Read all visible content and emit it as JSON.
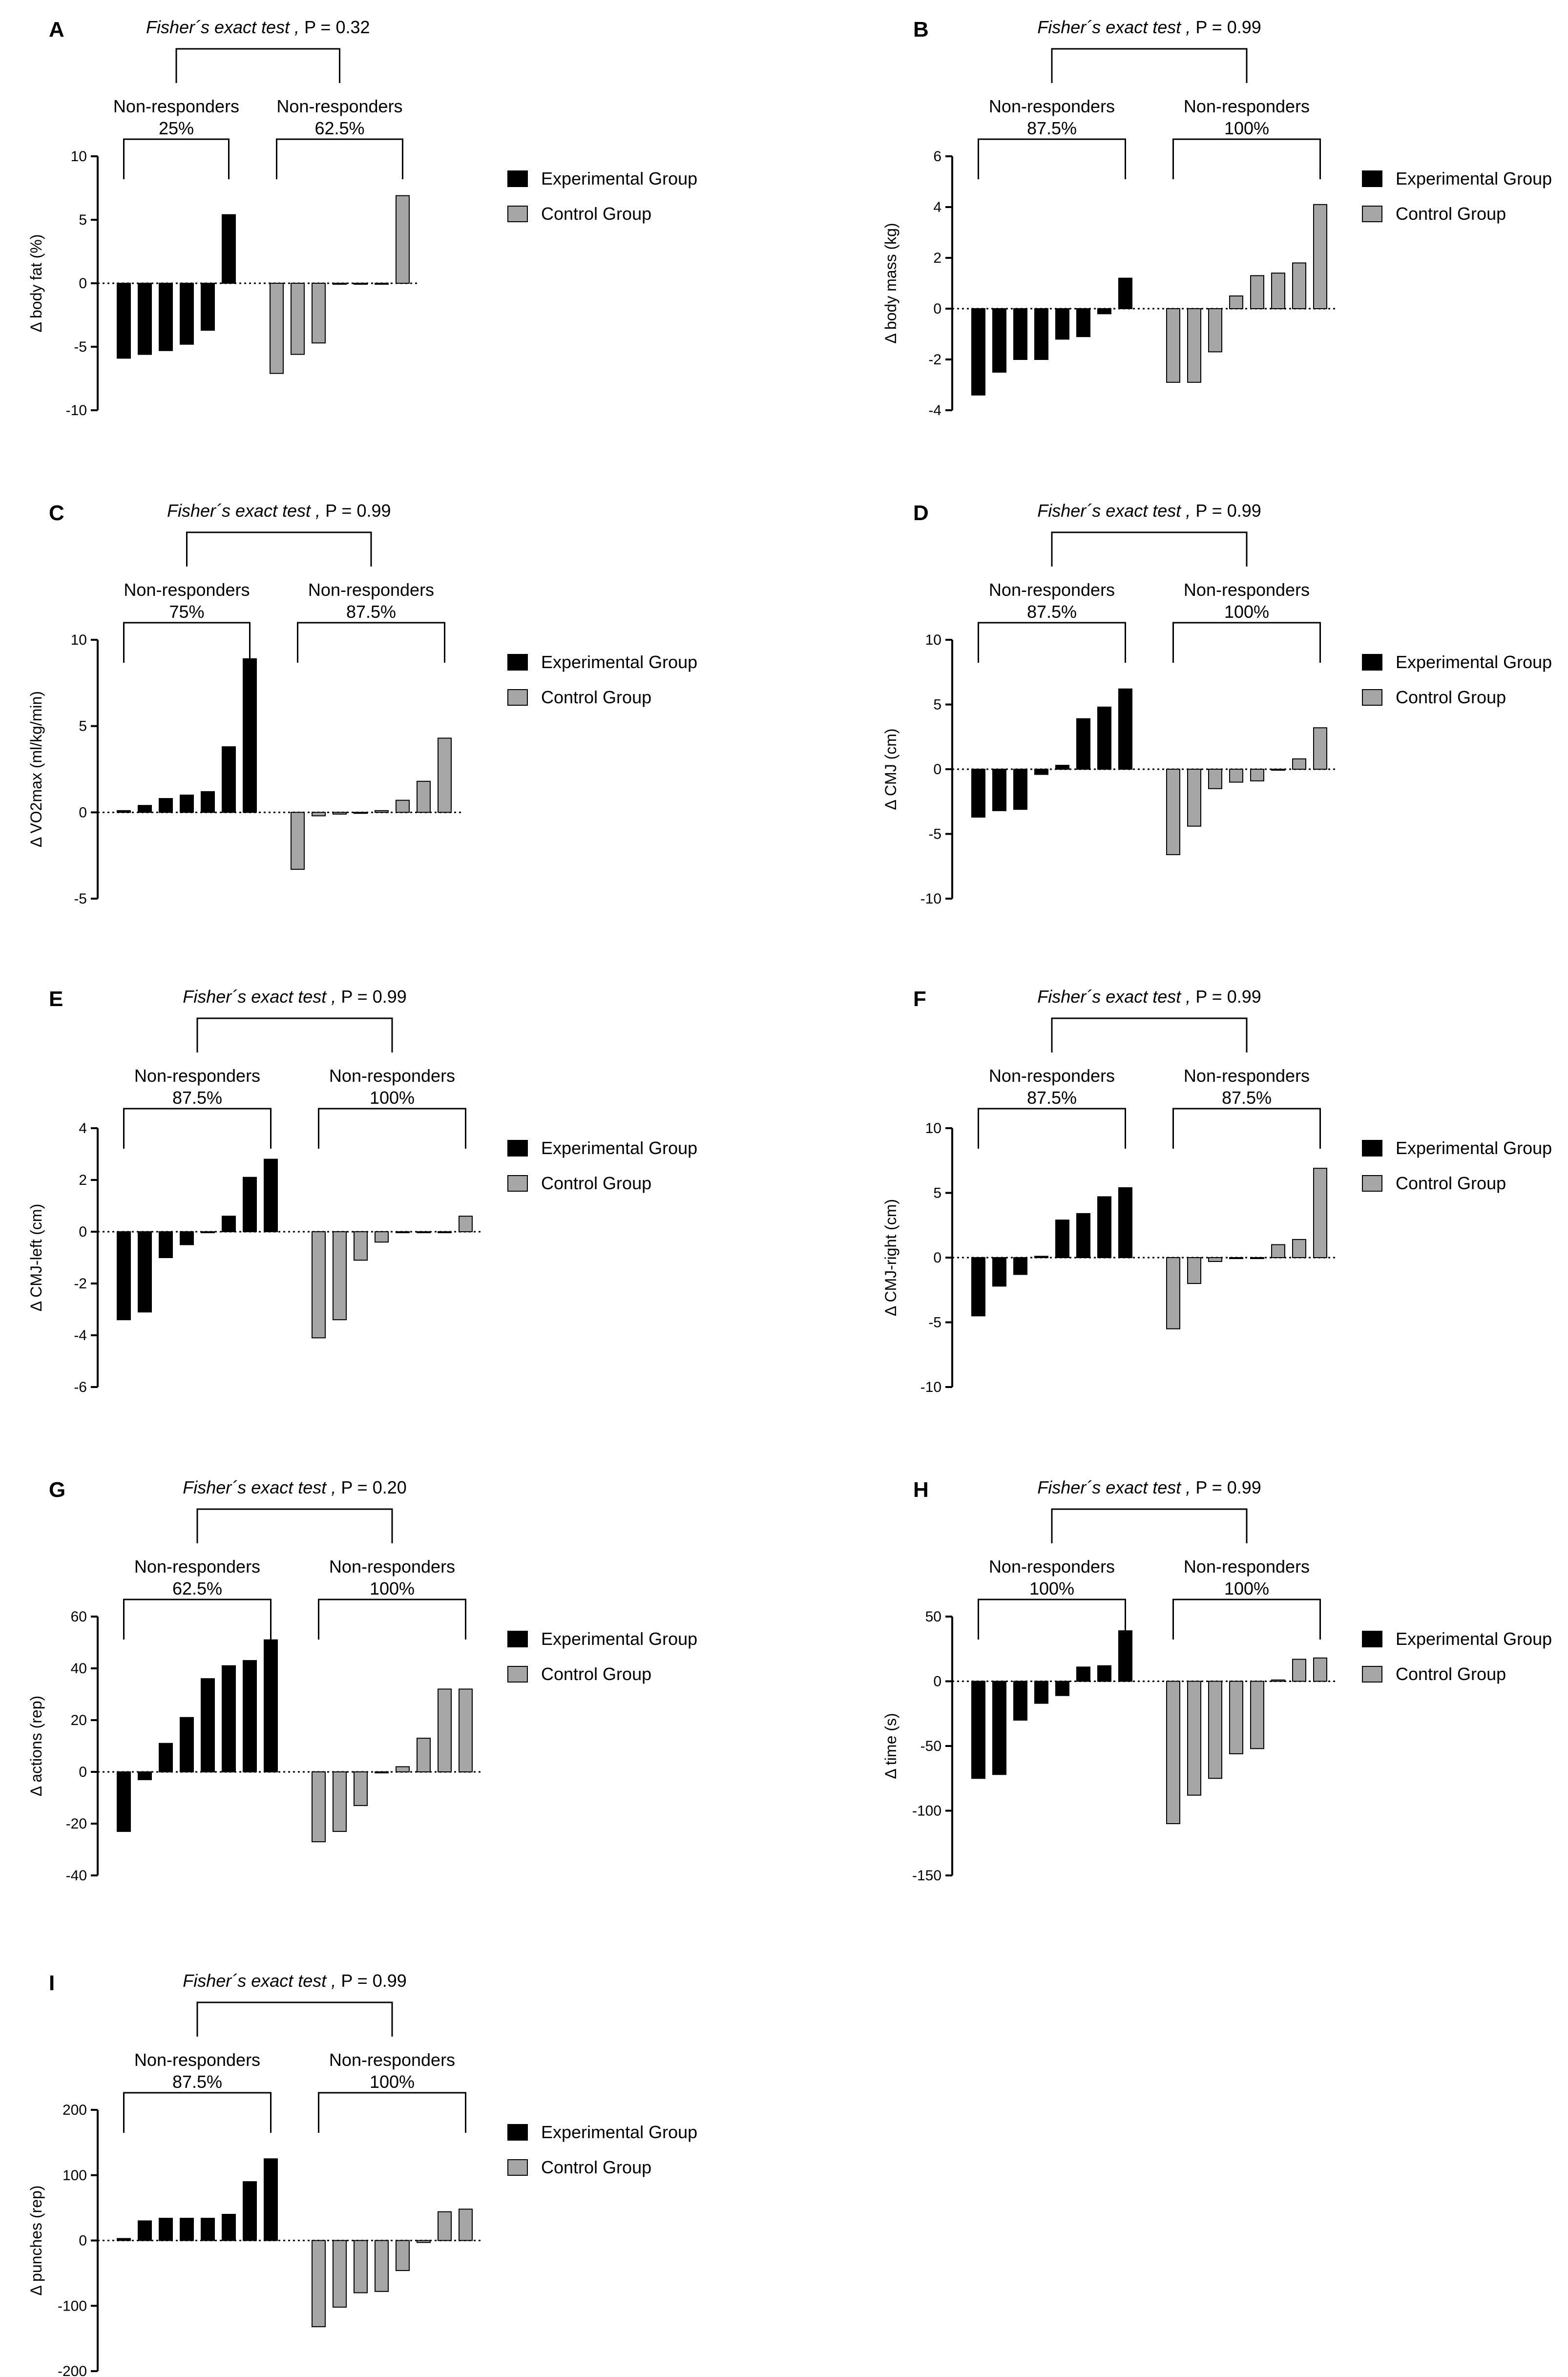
{
  "legend_labels": {
    "experimental": "Experimental Group",
    "control": "Control Group"
  },
  "colors": {
    "experimental": "#000000",
    "control": "#a6a6a6",
    "axis": "#000000"
  },
  "chart_data": [
    {
      "id": "A",
      "type": "bar",
      "ylabel": "Δ body fat (%)",
      "ylim": [
        -10,
        10
      ],
      "yticks": [
        -10,
        -5,
        0,
        5,
        10
      ],
      "test_label": "Fisher´s exact test , ",
      "p_label": "P = 0.32",
      "nr_exp": {
        "label": "Non-responders",
        "pct": "25%"
      },
      "nr_ctl": {
        "label": "Non-responders",
        "pct": "62.5%"
      },
      "series": [
        {
          "name": "Experimental Group",
          "values": [
            -5.9,
            -5.6,
            -5.3,
            -4.8,
            -3.7,
            5.4
          ]
        },
        {
          "name": "Control Group",
          "values": [
            -7.1,
            -5.6,
            -4.7,
            0,
            0,
            0,
            6.9
          ]
        }
      ]
    },
    {
      "id": "B",
      "type": "bar",
      "ylabel": "Δ body mass (kg)",
      "ylim": [
        -4,
        6
      ],
      "yticks": [
        -4,
        -2,
        0,
        2,
        4,
        6
      ],
      "test_label": "Fisher´s exact test , ",
      "p_label": "P = 0.99",
      "nr_exp": {
        "label": "Non-responders",
        "pct": "87.5%"
      },
      "nr_ctl": {
        "label": "Non-responders",
        "pct": "100%"
      },
      "series": [
        {
          "name": "Experimental Group",
          "values": [
            -3.4,
            -2.5,
            -2.0,
            -2.0,
            -1.2,
            -1.1,
            -0.2,
            1.2
          ]
        },
        {
          "name": "Control Group",
          "values": [
            -2.9,
            -2.9,
            -1.7,
            0.5,
            1.3,
            1.4,
            1.8,
            4.1
          ]
        }
      ]
    },
    {
      "id": "C",
      "type": "bar",
      "ylabel": "Δ VO2max (ml/kg/min)",
      "ylim": [
        -5,
        10
      ],
      "yticks": [
        -5,
        0,
        5,
        10
      ],
      "test_label": "Fisher´s exact test , ",
      "p_label": "P = 0.99",
      "nr_exp": {
        "label": "Non-responders",
        "pct": "75%"
      },
      "nr_ctl": {
        "label": "Non-responders",
        "pct": "87.5%"
      },
      "series": [
        {
          "name": "Experimental Group",
          "values": [
            0.1,
            0.4,
            0.8,
            1.0,
            1.2,
            3.8,
            8.9
          ]
        },
        {
          "name": "Control Group",
          "values": [
            -3.3,
            -0.2,
            -0.1,
            0,
            0.1,
            0.7,
            1.8,
            4.3
          ]
        }
      ]
    },
    {
      "id": "D",
      "type": "bar",
      "ylabel": "Δ CMJ (cm)",
      "ylim": [
        -10,
        10
      ],
      "yticks": [
        -10,
        -5,
        0,
        5,
        10
      ],
      "test_label": "Fisher´s exact test , ",
      "p_label": "P = 0.99",
      "nr_exp": {
        "label": "Non-responders",
        "pct": "87.5%"
      },
      "nr_ctl": {
        "label": "Non-responders",
        "pct": "100%"
      },
      "series": [
        {
          "name": "Experimental Group",
          "values": [
            -3.7,
            -3.2,
            -3.1,
            -0.4,
            0.3,
            3.9,
            4.8,
            6.2
          ]
        },
        {
          "name": "Control Group",
          "values": [
            -6.6,
            -4.4,
            -1.5,
            -1.0,
            -0.9,
            0,
            0.8,
            3.2
          ]
        }
      ]
    },
    {
      "id": "E",
      "type": "bar",
      "ylabel": "Δ CMJ-left (cm)",
      "ylim": [
        -6,
        4
      ],
      "yticks": [
        -6,
        -4,
        -2,
        0,
        2,
        4
      ],
      "test_label": "Fisher´s exact test , ",
      "p_label": "P = 0.99",
      "nr_exp": {
        "label": "Non-responders",
        "pct": "87.5%"
      },
      "nr_ctl": {
        "label": "Non-responders",
        "pct": "100%"
      },
      "series": [
        {
          "name": "Experimental Group",
          "values": [
            -3.4,
            -3.1,
            -1.0,
            -0.5,
            0,
            0.6,
            2.1,
            2.8
          ]
        },
        {
          "name": "Control Group",
          "values": [
            -4.1,
            -3.4,
            -1.1,
            -0.4,
            0,
            0,
            0,
            0.6
          ]
        }
      ]
    },
    {
      "id": "F",
      "type": "bar",
      "ylabel": "Δ CMJ-right (cm)",
      "ylim": [
        -10,
        10
      ],
      "yticks": [
        -10,
        -5,
        0,
        5,
        10
      ],
      "test_label": "Fisher´s exact test , ",
      "p_label": "P = 0.99",
      "nr_exp": {
        "label": "Non-responders",
        "pct": "87.5%"
      },
      "nr_ctl": {
        "label": "Non-responders",
        "pct": "87.5%"
      },
      "series": [
        {
          "name": "Experimental Group",
          "values": [
            -4.5,
            -2.2,
            -1.3,
            0.1,
            2.9,
            3.4,
            4.7,
            5.4
          ]
        },
        {
          "name": "Control Group",
          "values": [
            -5.5,
            -2.0,
            -0.3,
            0,
            0,
            1.0,
            1.4,
            6.9
          ]
        }
      ]
    },
    {
      "id": "G",
      "type": "bar",
      "ylabel": "Δ actions (rep)",
      "ylim": [
        -40,
        60
      ],
      "yticks": [
        -40,
        -20,
        0,
        20,
        40,
        60
      ],
      "test_label": "Fisher´s exact test , ",
      "p_label": "P = 0.20",
      "nr_exp": {
        "label": "Non-responders",
        "pct": "62.5%"
      },
      "nr_ctl": {
        "label": "Non-responders",
        "pct": "100%"
      },
      "series": [
        {
          "name": "Experimental Group",
          "values": [
            -23,
            -3,
            11,
            21,
            36,
            41,
            43,
            51
          ]
        },
        {
          "name": "Control Group",
          "values": [
            -27,
            -23,
            -13,
            0,
            2,
            13,
            32,
            32
          ]
        }
      ]
    },
    {
      "id": "H",
      "type": "bar",
      "ylabel": "Δ time (s)",
      "ylim": [
        -150,
        50
      ],
      "yticks": [
        -150,
        -100,
        -50,
        0,
        50
      ],
      "test_label": "Fisher´s exact test , ",
      "p_label": "P = 0.99",
      "nr_exp": {
        "label": "Non-responders",
        "pct": "100%"
      },
      "nr_ctl": {
        "label": "Non-responders",
        "pct": "100%"
      },
      "series": [
        {
          "name": "Experimental Group",
          "values": [
            -75,
            -72,
            -30,
            -17,
            -11,
            11,
            12,
            39
          ]
        },
        {
          "name": "Control Group",
          "values": [
            -110,
            -88,
            -75,
            -56,
            -52,
            1,
            17,
            18
          ]
        }
      ]
    },
    {
      "id": "I",
      "type": "bar",
      "ylabel": "Δ punches (rep)",
      "ylim": [
        -200,
        200
      ],
      "yticks": [
        -200,
        -100,
        0,
        100,
        200
      ],
      "test_label": "Fisher´s exact test , ",
      "p_label": "P = 0.99",
      "nr_exp": {
        "label": "Non-responders",
        "pct": "87.5%"
      },
      "nr_ctl": {
        "label": "Non-responders",
        "pct": "100%"
      },
      "series": [
        {
          "name": "Experimental Group",
          "values": [
            3,
            30,
            34,
            34,
            34,
            40,
            90,
            125
          ]
        },
        {
          "name": "Control Group",
          "values": [
            -132,
            -102,
            -80,
            -78,
            -46,
            -3,
            44,
            48
          ]
        }
      ]
    }
  ]
}
